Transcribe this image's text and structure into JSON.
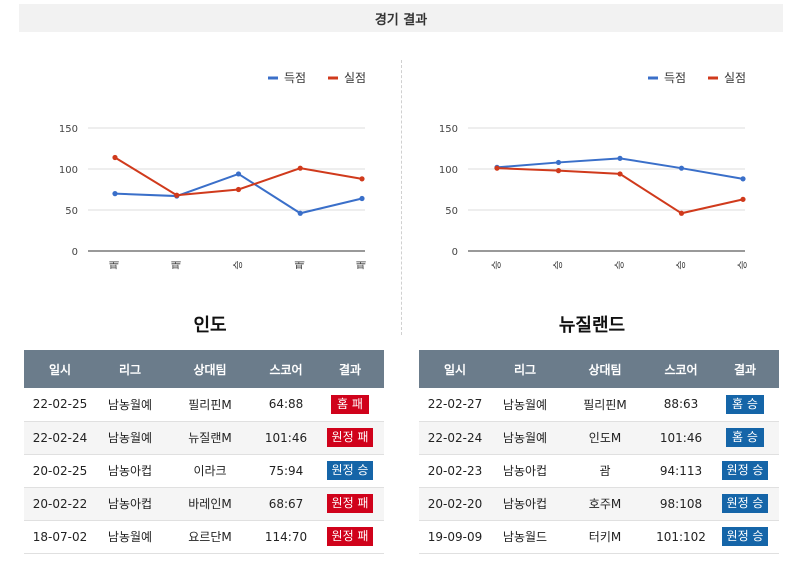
{
  "header": {
    "title": "경기 결과"
  },
  "colors": {
    "score": "#3a6fc9",
    "conceded": "#d03a1c",
    "win": "#1565a8",
    "loss": "#d0021b"
  },
  "chart_data": [
    {
      "type": "line",
      "categories": [
        "패",
        "패",
        "승",
        "패",
        "패"
      ],
      "series": [
        {
          "name": "득점",
          "values": [
            70,
            67,
            94,
            46,
            64
          ]
        },
        {
          "name": "실점",
          "values": [
            114,
            68,
            75,
            101,
            88
          ]
        }
      ],
      "ylim": [
        0,
        150
      ],
      "yticks": [
        0,
        50,
        100,
        150
      ],
      "grid": true,
      "legend": "top-right"
    },
    {
      "type": "line",
      "categories": [
        "승",
        "승",
        "승",
        "승",
        "승"
      ],
      "series": [
        {
          "name": "득점",
          "values": [
            102,
            108,
            113,
            101,
            88
          ]
        },
        {
          "name": "실점",
          "values": [
            101,
            98,
            94,
            46,
            63
          ]
        }
      ],
      "ylim": [
        0,
        150
      ],
      "yticks": [
        0,
        50,
        100,
        150
      ],
      "grid": true,
      "legend": "top-right"
    }
  ],
  "teams": [
    {
      "name": "인도",
      "columns": [
        "일시",
        "리그",
        "상대팀",
        "스코어",
        "결과"
      ],
      "rows": [
        {
          "date": "22-02-25",
          "league": "남농월예",
          "opponent": "필리핀M",
          "score": "64:88",
          "result": "홈 패",
          "outcome": "loss"
        },
        {
          "date": "22-02-24",
          "league": "남농월예",
          "opponent": "뉴질랜M",
          "score": "101:46",
          "result": "원정 패",
          "outcome": "loss"
        },
        {
          "date": "20-02-25",
          "league": "남농아컵",
          "opponent": "이라크",
          "score": "75:94",
          "result": "원정 승",
          "outcome": "win"
        },
        {
          "date": "20-02-22",
          "league": "남농아컵",
          "opponent": "바레인M",
          "score": "68:67",
          "result": "원정 패",
          "outcome": "loss"
        },
        {
          "date": "18-07-02",
          "league": "남농월예",
          "opponent": "요르단M",
          "score": "114:70",
          "result": "원정 패",
          "outcome": "loss"
        }
      ]
    },
    {
      "name": "뉴질랜드",
      "columns": [
        "일시",
        "리그",
        "상대팀",
        "스코어",
        "결과"
      ],
      "rows": [
        {
          "date": "22-02-27",
          "league": "남농월예",
          "opponent": "필리핀M",
          "score": "88:63",
          "result": "홈 승",
          "outcome": "win"
        },
        {
          "date": "22-02-24",
          "league": "남농월예",
          "opponent": "인도M",
          "score": "101:46",
          "result": "홈 승",
          "outcome": "win"
        },
        {
          "date": "20-02-23",
          "league": "남농아컵",
          "opponent": "괌",
          "score": "94:113",
          "result": "원정 승",
          "outcome": "win"
        },
        {
          "date": "20-02-20",
          "league": "남농아컵",
          "opponent": "호주M",
          "score": "98:108",
          "result": "원정 승",
          "outcome": "win"
        },
        {
          "date": "19-09-09",
          "league": "남농월드",
          "opponent": "터키M",
          "score": "101:102",
          "result": "원정 승",
          "outcome": "win"
        }
      ]
    }
  ]
}
